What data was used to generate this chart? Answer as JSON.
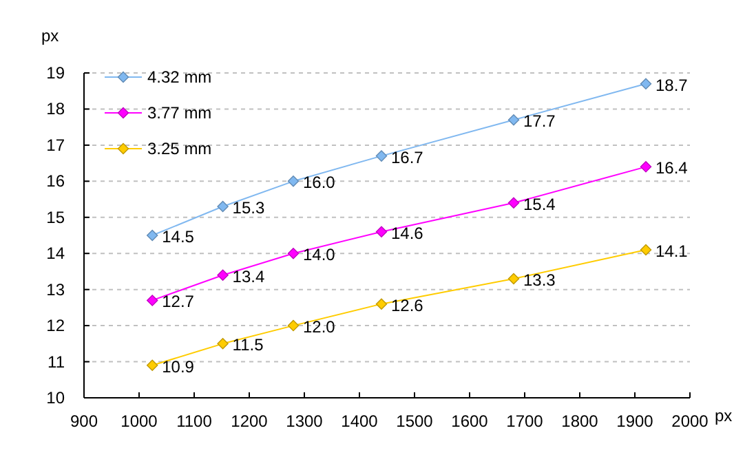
{
  "chart_data": {
    "type": "line",
    "xlabel": "px",
    "ylabel": "px",
    "x": [
      1024,
      1152,
      1280,
      1440,
      1680,
      1920
    ],
    "xlim": [
      900,
      2000
    ],
    "xticks": [
      900,
      1000,
      1100,
      1200,
      1300,
      1400,
      1500,
      1600,
      1700,
      1800,
      1900,
      2000
    ],
    "ylim": [
      10,
      19
    ],
    "yticks": [
      10,
      11,
      12,
      13,
      14,
      15,
      16,
      17,
      18,
      19
    ],
    "grid": "y",
    "legend": "top left",
    "marker": "diamond",
    "line_style": "solid",
    "series": [
      {
        "name": "4.32 mm",
        "color": "#80b8f0",
        "values": [
          14.5,
          15.3,
          16.0,
          16.7,
          17.7,
          18.7
        ],
        "value_labels": [
          "14.5",
          "15.3",
          "16.0",
          "16.7",
          "17.7",
          "18.7"
        ]
      },
      {
        "name": "3.77 mm",
        "color": "#ff00ff",
        "values": [
          12.7,
          13.4,
          14.0,
          14.6,
          15.4,
          16.4
        ],
        "value_labels": [
          "12.7",
          "13.4",
          "14.0",
          "14.6",
          "15.4",
          "16.4"
        ]
      },
      {
        "name": "3.25 mm",
        "color": "#ffcc00",
        "values": [
          10.9,
          11.5,
          12.0,
          12.6,
          13.3,
          14.1
        ],
        "value_labels": [
          "10.9",
          "11.5",
          "12.0",
          "12.6",
          "13.3",
          "14.1"
        ]
      }
    ]
  }
}
